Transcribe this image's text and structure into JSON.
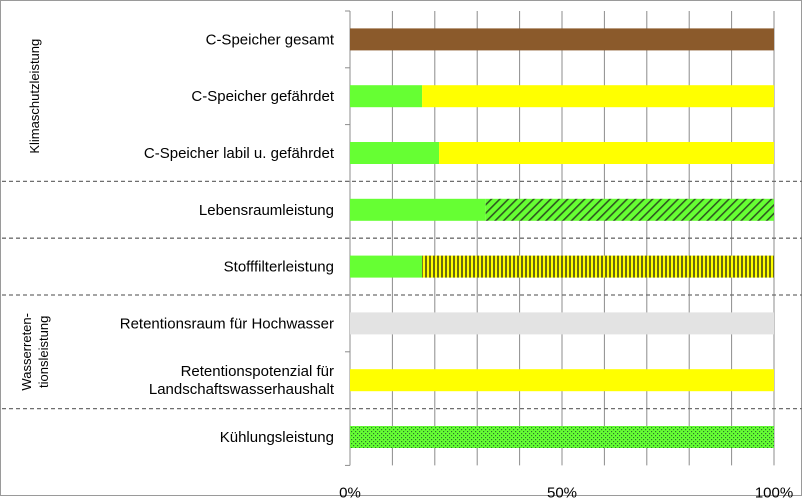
{
  "chart_data": {
    "type": "bar",
    "orientation": "horizontal",
    "stacked": true,
    "x_ticks": [
      "0%",
      "50%",
      "100%"
    ],
    "xlim": [
      0,
      100
    ],
    "grid": true,
    "categories": [
      {
        "label_lines": [
          "C-Speicher gesamt"
        ]
      },
      {
        "label_lines": [
          "C-Speicher gefährdet"
        ]
      },
      {
        "label_lines": [
          "C-Speicher labil u. gefährdet"
        ]
      },
      {
        "label_lines": [
          "Lebensraumleistung"
        ]
      },
      {
        "label_lines": [
          "Stofffilterleistung"
        ]
      },
      {
        "label_lines": [
          "Retentionsraum für Hochwasser"
        ]
      },
      {
        "label_lines": [
          "Retentionspotenzial für",
          "Landschaftswasserhaushalt"
        ]
      },
      {
        "label_lines": [
          "Kühlungsleistung"
        ]
      }
    ],
    "segments": [
      [
        {
          "value": 100,
          "color": "#8b5a2b",
          "pattern": "solid"
        }
      ],
      [
        {
          "value": 17,
          "color": "#66ff33",
          "pattern": "solid"
        },
        {
          "value": 83,
          "color": "#ffff00",
          "pattern": "solid"
        }
      ],
      [
        {
          "value": 21,
          "color": "#66ff33",
          "pattern": "solid"
        },
        {
          "value": 79,
          "color": "#ffff00",
          "pattern": "solid"
        }
      ],
      [
        {
          "value": 32,
          "color": "#66ff33",
          "pattern": "solid"
        },
        {
          "value": 68,
          "color": "#66ff33",
          "pattern": "diagonal-hatch"
        }
      ],
      [
        {
          "value": 17,
          "color": "#66ff33",
          "pattern": "solid"
        },
        {
          "value": 83,
          "color": "#ffff00",
          "pattern": "vertical-lines"
        }
      ],
      [
        {
          "value": 100,
          "color": "#e3e3e3",
          "pattern": "solid"
        }
      ],
      [
        {
          "value": 100,
          "color": "#ffff00",
          "pattern": "solid"
        }
      ],
      [
        {
          "value": 100,
          "color": "#66ff33",
          "pattern": "dots"
        }
      ]
    ],
    "groups": [
      {
        "label_lines": [
          "Klimaschutzleistung"
        ],
        "from": 0,
        "to": 2
      },
      {
        "label_lines": [
          "Wasserreten-",
          "tionsleistung"
        ],
        "from": 5,
        "to": 6
      }
    ],
    "separators_after": [
      2,
      3,
      4,
      6
    ]
  }
}
